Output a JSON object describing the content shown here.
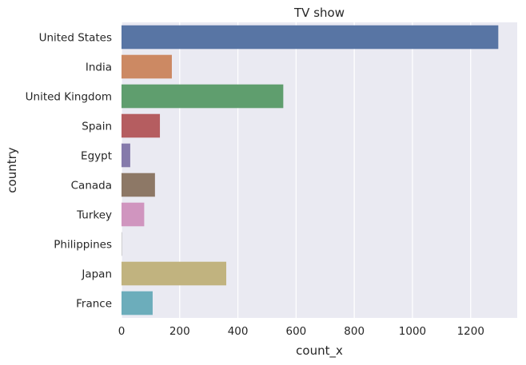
{
  "chart_data": {
    "type": "bar",
    "orientation": "horizontal",
    "title": "TV show",
    "xlabel": "count_x",
    "ylabel": "country",
    "categories": [
      "United States",
      "India",
      "United Kingdom",
      "Spain",
      "Egypt",
      "Canada",
      "Turkey",
      "Philippines",
      "Japan",
      "France"
    ],
    "values": [
      1295,
      173,
      556,
      132,
      30,
      115,
      78,
      1,
      360,
      107
    ],
    "xlim": [
      0,
      1360
    ],
    "xticks": [
      0,
      200,
      400,
      600,
      800,
      1000,
      1200
    ],
    "grid": true,
    "legend": "none",
    "colors": [
      "#5875a4",
      "#cc8963",
      "#5f9e6e",
      "#b55d60",
      "#857aab",
      "#8d7866",
      "#d095bf",
      "#8c8c8c",
      "#c1b37f",
      "#6cadbb"
    ],
    "background_color": "#eaeaf2",
    "grid_color": "#ffffff"
  }
}
